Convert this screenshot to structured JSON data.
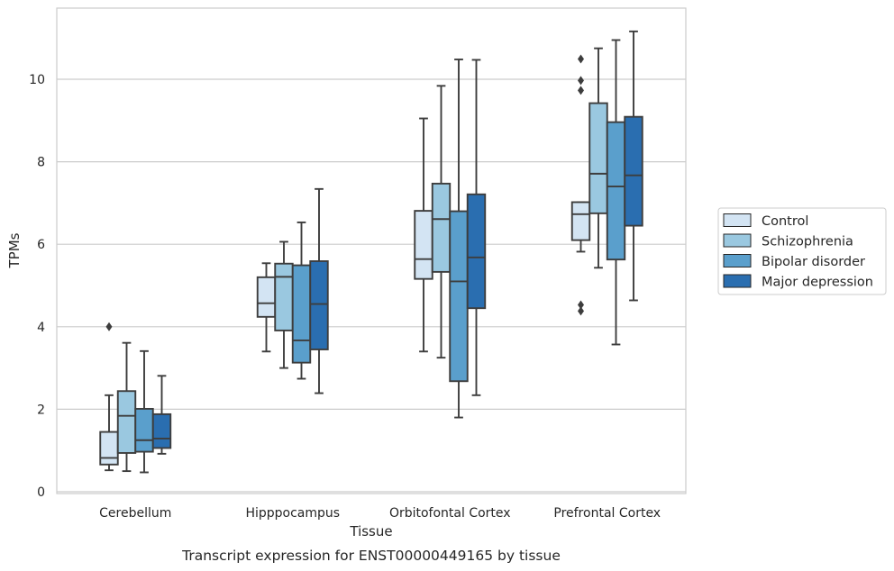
{
  "chart_data": {
    "type": "box",
    "title": "",
    "caption": "Transcript expression for ENST00000449165 by tissue",
    "xlabel": "Tissue",
    "ylabel": "TPMs",
    "ylim": [
      0,
      11.6
    ],
    "yticks": [
      0,
      2,
      4,
      6,
      8,
      10
    ],
    "grid": "y",
    "legend_position": "right",
    "categories": [
      "Cerebellum",
      "Hipppocampus",
      "Orbitofontal Cortex",
      "Prefrontal Cortex"
    ],
    "series": [
      {
        "name": "Control",
        "color": "#d3e4f3",
        "boxes": [
          {
            "whisker_low": 0.52,
            "q1": 0.66,
            "median": 0.82,
            "q3": 1.45,
            "whisker_high": 2.34,
            "outliers": [
              4.0
            ]
          },
          {
            "whisker_low": 3.4,
            "q1": 4.24,
            "median": 4.57,
            "q3": 5.2,
            "whisker_high": 5.54,
            "outliers": []
          },
          {
            "whisker_low": 3.4,
            "q1": 5.16,
            "median": 5.64,
            "q3": 6.81,
            "whisker_high": 9.05,
            "outliers": []
          },
          {
            "whisker_low": 5.82,
            "q1": 6.1,
            "median": 6.73,
            "q3": 7.02,
            "whisker_high": 7.02,
            "outliers": [
              10.49,
              9.97,
              9.73,
              4.53,
              4.38
            ]
          }
        ]
      },
      {
        "name": "Schizophrenia",
        "color": "#9ac8e0",
        "boxes": [
          {
            "whisker_low": 0.5,
            "q1": 0.94,
            "median": 1.84,
            "q3": 2.44,
            "whisker_high": 3.61,
            "outliers": []
          },
          {
            "whisker_low": 3.0,
            "q1": 3.91,
            "median": 5.21,
            "q3": 5.53,
            "whisker_high": 6.06,
            "outliers": []
          },
          {
            "whisker_low": 3.25,
            "q1": 5.33,
            "median": 6.61,
            "q3": 7.47,
            "whisker_high": 9.84,
            "outliers": []
          },
          {
            "whisker_low": 5.43,
            "q1": 6.75,
            "median": 7.71,
            "q3": 9.42,
            "whisker_high": 10.75,
            "outliers": []
          }
        ]
      },
      {
        "name": "Bipolar disorder",
        "color": "#5a9fcc",
        "boxes": [
          {
            "whisker_low": 0.47,
            "q1": 0.97,
            "median": 1.25,
            "q3": 2.01,
            "whisker_high": 3.41,
            "outliers": []
          },
          {
            "whisker_low": 2.74,
            "q1": 3.13,
            "median": 3.67,
            "q3": 5.49,
            "whisker_high": 6.53,
            "outliers": []
          },
          {
            "whisker_low": 1.8,
            "q1": 2.68,
            "median": 5.1,
            "q3": 6.8,
            "whisker_high": 10.48,
            "outliers": []
          },
          {
            "whisker_low": 3.57,
            "q1": 5.63,
            "median": 7.4,
            "q3": 8.96,
            "whisker_high": 10.95,
            "outliers": []
          }
        ]
      },
      {
        "name": "Major depression",
        "color": "#2a6eb0",
        "boxes": [
          {
            "whisker_low": 0.92,
            "q1": 1.06,
            "median": 1.29,
            "q3": 1.88,
            "whisker_high": 2.81,
            "outliers": []
          },
          {
            "whisker_low": 2.39,
            "q1": 3.45,
            "median": 4.55,
            "q3": 5.59,
            "whisker_high": 7.34,
            "outliers": []
          },
          {
            "whisker_low": 2.34,
            "q1": 4.45,
            "median": 5.68,
            "q3": 7.21,
            "whisker_high": 10.47,
            "outliers": []
          },
          {
            "whisker_low": 4.64,
            "q1": 6.45,
            "median": 7.67,
            "q3": 9.09,
            "whisker_high": 11.16,
            "outliers": []
          }
        ]
      }
    ]
  },
  "colors": {
    "grid": "#cccccc",
    "frame": "#cccccc",
    "line": "#3d3d3d"
  }
}
